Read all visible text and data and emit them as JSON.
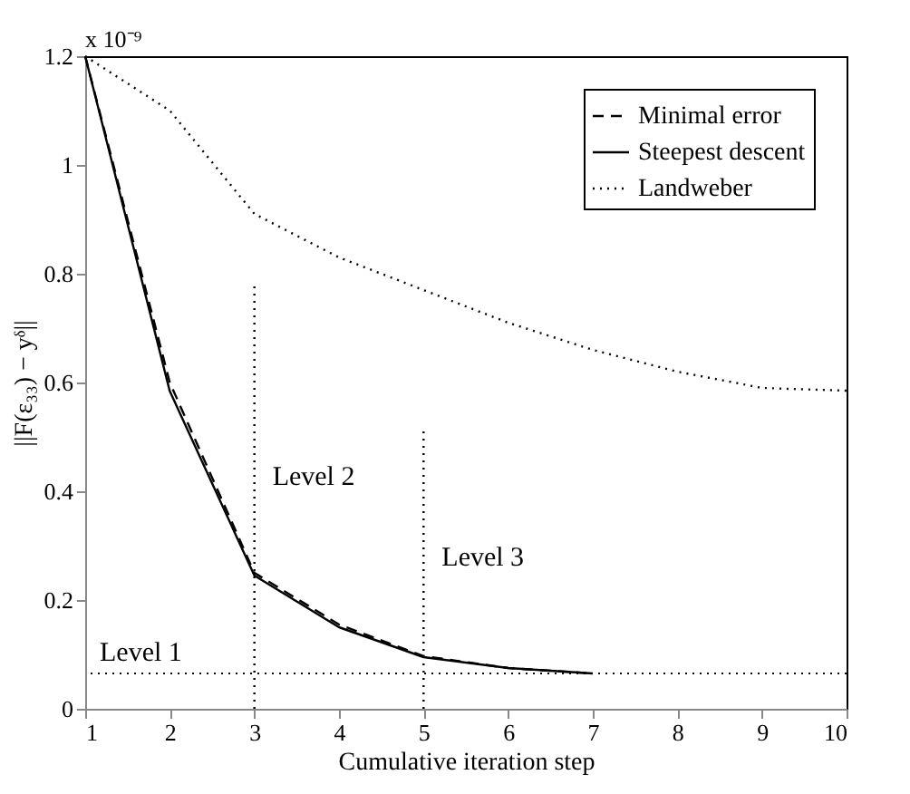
{
  "chart_data": {
    "type": "line",
    "xlabel": "Cumulative iteration step",
    "ylabel": "||F(ε₃₃) − yᵟ||",
    "xlim": [
      1,
      10
    ],
    "xticks": [
      1,
      2,
      3,
      4,
      5,
      6,
      7,
      8,
      9,
      10
    ],
    "ylim": [
      0,
      1.2
    ],
    "yticks": [
      0,
      0.2,
      0.4,
      0.6,
      0.8,
      1,
      1.2
    ],
    "grid": false,
    "legend": "top right",
    "marker": "none",
    "series": [
      {
        "name": "Minimal error",
        "color": "#000000",
        "line_style": "dashed",
        "x": [
          1,
          2,
          3,
          4,
          5,
          6,
          7
        ],
        "values": [
          1.2,
          0.6,
          0.25,
          0.155,
          0.097,
          0.075,
          0.065
        ]
      },
      {
        "name": "Steepest descent",
        "color": "#000000",
        "line_style": "solid",
        "x": [
          1,
          2,
          3,
          4,
          5,
          6,
          7
        ],
        "values": [
          1.2,
          0.584,
          0.245,
          0.15,
          0.095,
          0.075,
          0.065
        ]
      },
      {
        "name": "Landweber",
        "color": "#000000",
        "line_style": "dotted",
        "x": [
          1,
          2,
          3,
          4,
          5,
          6,
          7,
          8,
          9,
          10
        ],
        "values": [
          1.2,
          1.1,
          0.91,
          0.83,
          0.77,
          0.71,
          0.66,
          0.62,
          0.59,
          0.585
        ]
      },
      {
        "color": "#000000",
        "line_style": "dotted",
        "x": [
          3,
          3
        ],
        "values": [
          0,
          0.78
        ]
      },
      {
        "color": "#000000",
        "line_style": "dotted",
        "x": [
          5,
          5
        ],
        "values": [
          0,
          0.51
        ]
      }
    ],
    "ref_lines": [
      {
        "axis": "y",
        "value": 0.065,
        "color": "#000000",
        "line_style": "dotted",
        "label": "Level 1"
      }
    ],
    "annotations": [
      "x 10⁻⁹",
      "Level 2",
      "Level 3"
    ]
  }
}
